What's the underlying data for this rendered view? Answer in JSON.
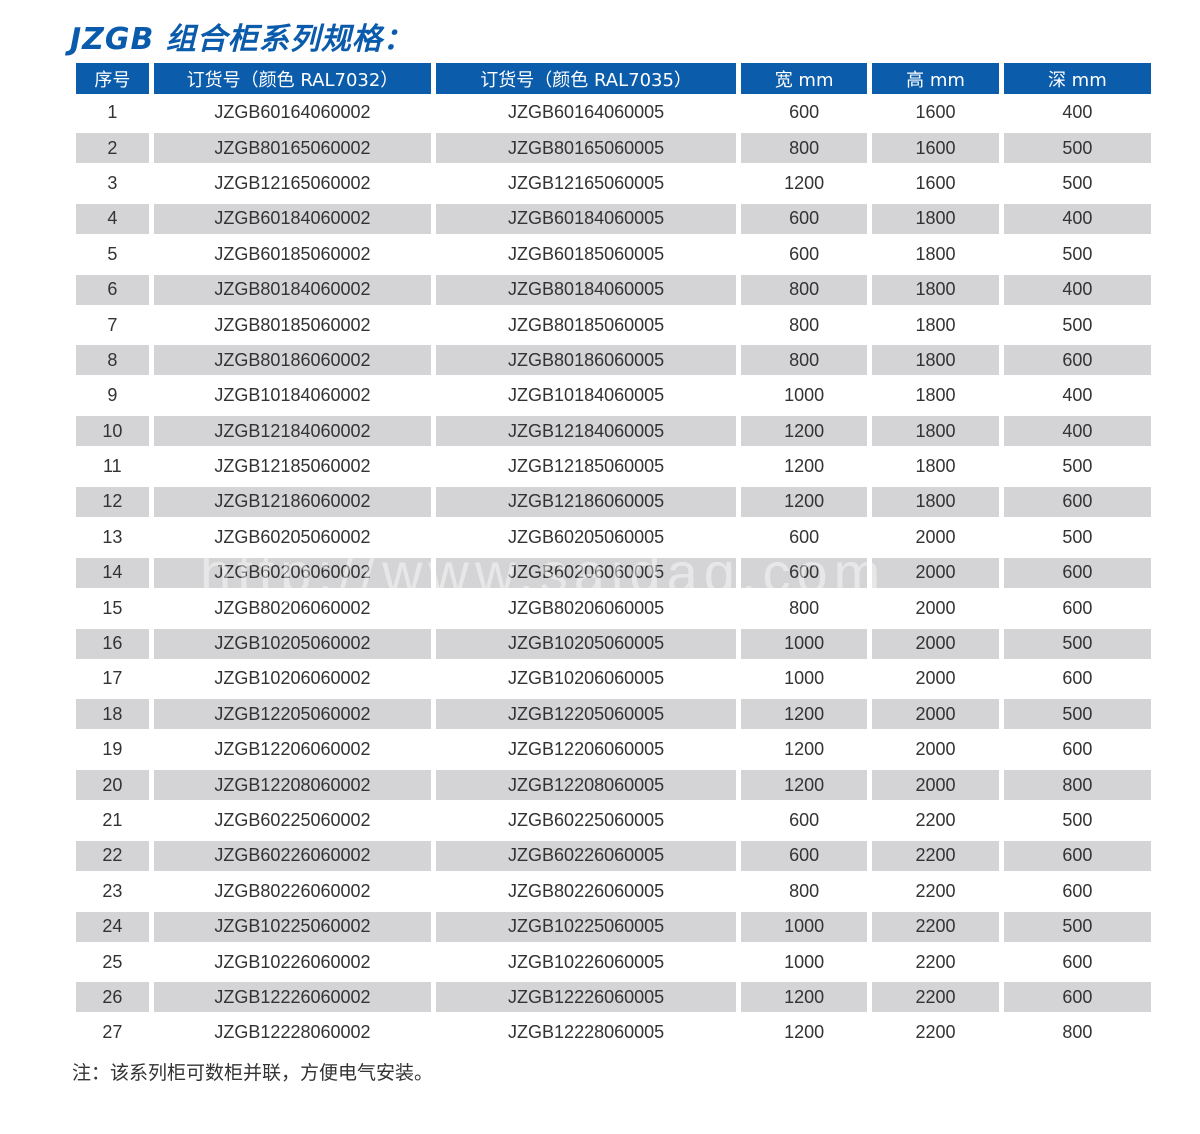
{
  "title": "JZGB 组合柜系列规格：",
  "table": {
    "headers": [
      "序号",
      "订货号（颜色 RAL7032）",
      "订货号（颜色 RAL7035）",
      "宽 mm",
      "高 mm",
      "深 mm"
    ],
    "rows": [
      [
        "1",
        "JZGB60164060002",
        "JZGB60164060005",
        "600",
        "1600",
        "400"
      ],
      [
        "2",
        "JZGB80165060002",
        "JZGB80165060005",
        "800",
        "1600",
        "500"
      ],
      [
        "3",
        "JZGB12165060002",
        "JZGB12165060005",
        "1200",
        "1600",
        "500"
      ],
      [
        "4",
        "JZGB60184060002",
        "JZGB60184060005",
        "600",
        "1800",
        "400"
      ],
      [
        "5",
        "JZGB60185060002",
        "JZGB60185060005",
        "600",
        "1800",
        "500"
      ],
      [
        "6",
        "JZGB80184060002",
        "JZGB80184060005",
        "800",
        "1800",
        "400"
      ],
      [
        "7",
        "JZGB80185060002",
        "JZGB80185060005",
        "800",
        "1800",
        "500"
      ],
      [
        "8",
        "JZGB80186060002",
        "JZGB80186060005",
        "800",
        "1800",
        "600"
      ],
      [
        "9",
        "JZGB10184060002",
        "JZGB10184060005",
        "1000",
        "1800",
        "400"
      ],
      [
        "10",
        "JZGB12184060002",
        "JZGB12184060005",
        "1200",
        "1800",
        "400"
      ],
      [
        "11",
        "JZGB12185060002",
        "JZGB12185060005",
        "1200",
        "1800",
        "500"
      ],
      [
        "12",
        "JZGB12186060002",
        "JZGB12186060005",
        "1200",
        "1800",
        "600"
      ],
      [
        "13",
        "JZGB60205060002",
        "JZGB60205060005",
        "600",
        "2000",
        "500"
      ],
      [
        "14",
        "JZGB60206060002",
        "JZGB60206060005",
        "600",
        "2000",
        "600"
      ],
      [
        "15",
        "JZGB80206060002",
        "JZGB80206060005",
        "800",
        "2000",
        "600"
      ],
      [
        "16",
        "JZGB10205060002",
        "JZGB10205060005",
        "1000",
        "2000",
        "500"
      ],
      [
        "17",
        "JZGB10206060002",
        "JZGB10206060005",
        "1000",
        "2000",
        "600"
      ],
      [
        "18",
        "JZGB12205060002",
        "JZGB12205060005",
        "1200",
        "2000",
        "500"
      ],
      [
        "19",
        "JZGB12206060002",
        "JZGB12206060005",
        "1200",
        "2000",
        "600"
      ],
      [
        "20",
        "JZGB12208060002",
        "JZGB12208060005",
        "1200",
        "2000",
        "800"
      ],
      [
        "21",
        "JZGB60225060002",
        "JZGB60225060005",
        "600",
        "2200",
        "500"
      ],
      [
        "22",
        "JZGB60226060002",
        "JZGB60226060005",
        "600",
        "2200",
        "600"
      ],
      [
        "23",
        "JZGB80226060002",
        "JZGB80226060005",
        "800",
        "2200",
        "600"
      ],
      [
        "24",
        "JZGB10225060002",
        "JZGB10225060005",
        "1000",
        "2200",
        "500"
      ],
      [
        "25",
        "JZGB10226060002",
        "JZGB10226060005",
        "1000",
        "2200",
        "600"
      ],
      [
        "26",
        "JZGB12226060002",
        "JZGB12226060005",
        "1200",
        "2200",
        "600"
      ],
      [
        "27",
        "JZGB12228060002",
        "JZGB12228060005",
        "1200",
        "2200",
        "800"
      ]
    ]
  },
  "note": "注：该系列柜可数柜并联，方便电气安装。",
  "watermark": "http://www.saidaq.com",
  "colors": {
    "accent": "#0b5cab",
    "stripe": "#d4d4d6"
  }
}
